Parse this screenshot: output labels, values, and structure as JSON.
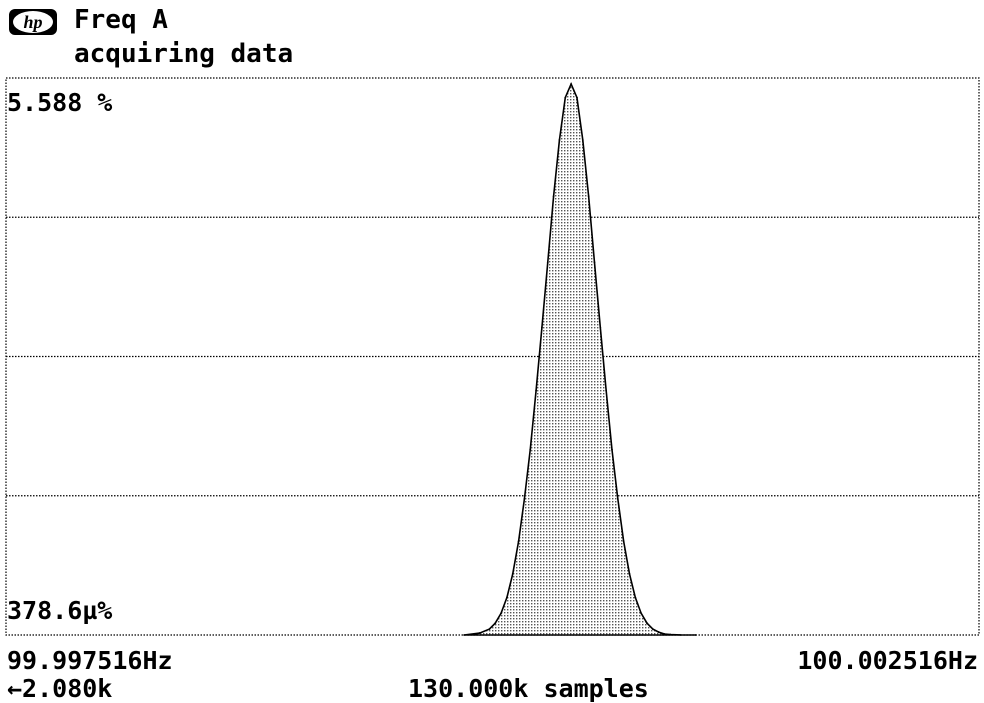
{
  "header": {
    "logo_text": "hp",
    "title": "Freq A",
    "status": "acquiring data"
  },
  "colors": {
    "background": "#ffffff",
    "grid": "#000000",
    "fill": "#808080",
    "outline": "#000000"
  },
  "footer": {
    "reference": "←2.080k",
    "sample_count": "130.000k samples"
  },
  "chart_data": {
    "type": "area",
    "title": "Freq A",
    "xlabel": "",
    "ylabel": "",
    "y_max_label": "5.588 %",
    "y_min_label": "378.6µ%",
    "x_min_label": "99.997516Hz",
    "x_max_label": "100.002516Hz",
    "xlim": [
      99.997516,
      100.002516
    ],
    "ylim": [
      0.0003786,
      5.588
    ],
    "grid": true,
    "legend": "none",
    "x": [
      99.99987,
      99.99995,
      100.0,
      100.00003,
      100.00006,
      100.00009,
      100.00012,
      100.00015,
      100.00018,
      100.00021,
      100.00024,
      100.00027,
      100.0003,
      100.00033,
      100.00036,
      100.00039,
      100.00042,
      100.00045,
      100.00048,
      100.00051,
      100.00054,
      100.00057,
      100.0006,
      100.00063,
      100.00066,
      100.00069,
      100.00072,
      100.00075,
      100.00078,
      100.00081,
      100.00084,
      100.00087,
      100.0009,
      100.00093,
      100.00098,
      100.00106
    ],
    "values": [
      0.0003786,
      0.02,
      0.06,
      0.12,
      0.22,
      0.38,
      0.62,
      0.95,
      1.38,
      1.88,
      2.48,
      3.12,
      3.78,
      4.45,
      5.02,
      5.45,
      5.588,
      5.45,
      5.02,
      4.45,
      3.78,
      3.12,
      2.48,
      1.88,
      1.38,
      0.95,
      0.62,
      0.38,
      0.22,
      0.12,
      0.06,
      0.03,
      0.01,
      0.005,
      0.001,
      0.0003786
    ]
  }
}
